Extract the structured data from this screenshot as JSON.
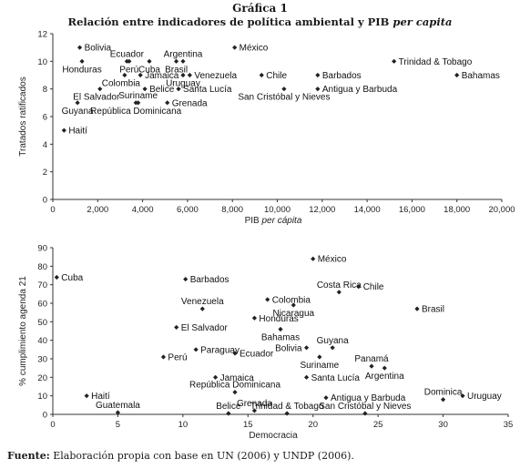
{
  "figure": {
    "title": "Gráfica 1",
    "subtitle_parts": [
      "Relación entre indicadores de política ambiental y ",
      "PIB",
      " ",
      "per capita"
    ],
    "source_label": "Fuente:",
    "source_parts": [
      " Elaboración propia con base en ",
      "UN",
      " (2006) y ",
      "UNDP",
      " (2006)."
    ]
  },
  "chart_data": [
    {
      "type": "scatter",
      "xlabel_parts": [
        "PIB ",
        "per cápita"
      ],
      "ylabel": "Tratados ratificados",
      "xlim": [
        0,
        20000
      ],
      "ylim": [
        0,
        12
      ],
      "xticks": [
        "0",
        "2,000",
        "4,000",
        "6,000",
        "8,000",
        "10,000",
        "12,000",
        "14,000",
        "16,000",
        "18,000",
        "20,000"
      ],
      "yticks": [
        "0",
        "2",
        "4",
        "6",
        "8",
        "10",
        "12"
      ],
      "points": [
        {
          "label": "Bolivia",
          "x": 1200,
          "y": 11,
          "pos": "right"
        },
        {
          "label": "México",
          "x": 8100,
          "y": 11,
          "pos": "right"
        },
        {
          "label": "Ecuador",
          "x": 3300,
          "y": 10,
          "pos": "above"
        },
        {
          "label": "Argentina",
          "x": 5800,
          "y": 10,
          "pos": "above"
        },
        {
          "label": "Trinidad & Tobago",
          "x": 15200,
          "y": 10,
          "pos": "right"
        },
        {
          "label": "Honduras",
          "x": 1300,
          "y": 10,
          "pos": "below"
        },
        {
          "label": "Perú",
          "x": 3400,
          "y": 10,
          "pos": "below"
        },
        {
          "label": "Cuba",
          "x": 4300,
          "y": 10,
          "pos": "below"
        },
        {
          "label": "Brasil",
          "x": 5500,
          "y": 10,
          "pos": "below"
        },
        {
          "label": "Venezuela",
          "x": 6100,
          "y": 9,
          "pos": "right"
        },
        {
          "label": "Chile",
          "x": 9300,
          "y": 9,
          "pos": "right"
        },
        {
          "label": "Barbados",
          "x": 11800,
          "y": 9,
          "pos": "right"
        },
        {
          "label": "Bahamas",
          "x": 18000,
          "y": 9,
          "pos": "right"
        },
        {
          "label": "Colombia",
          "x": 3200,
          "y": 9,
          "pos": "below-left"
        },
        {
          "label": "Jamaica",
          "x": 3900,
          "y": 9,
          "pos": "right"
        },
        {
          "label": "Uruguay",
          "x": 5800,
          "y": 9,
          "pos": "below"
        },
        {
          "label": "Belice",
          "x": 4100,
          "y": 8,
          "pos": "right"
        },
        {
          "label": "Santa Lucía",
          "x": 5600,
          "y": 8,
          "pos": "right"
        },
        {
          "label": "El Salvador",
          "x": 2100,
          "y": 8,
          "pos": "below-left"
        },
        {
          "label": "Suriname",
          "x": 3800,
          "y": 7,
          "pos": "above"
        },
        {
          "label": "Antigua y Barbuda",
          "x": 11800,
          "y": 8,
          "pos": "right"
        },
        {
          "label": "San Cristóbal y Nieves",
          "x": 10300,
          "y": 8,
          "pos": "below"
        },
        {
          "label": "Grenada",
          "x": 5100,
          "y": 7,
          "pos": "right"
        },
        {
          "label": "Guyana",
          "x": 1100,
          "y": 7,
          "pos": "below"
        },
        {
          "label": "República Dominicana",
          "x": 3700,
          "y": 7,
          "pos": "below"
        },
        {
          "label": "Haití",
          "x": 500,
          "y": 5,
          "pos": "right"
        }
      ]
    },
    {
      "type": "scatter",
      "xlabel": "Democracia",
      "ylabel": "% cumplimiento agenda 21",
      "xlim": [
        0,
        35
      ],
      "ylim": [
        0,
        90
      ],
      "xticks": [
        "0",
        "5",
        "10",
        "15",
        "20",
        "25",
        "30",
        "35"
      ],
      "yticks": [
        "0",
        "10",
        "20",
        "30",
        "40",
        "50",
        "60",
        "70",
        "80",
        "90"
      ],
      "points": [
        {
          "label": "México",
          "x": 20,
          "y": 84,
          "pos": "right"
        },
        {
          "label": "Cuba",
          "x": 0.3,
          "y": 74,
          "pos": "right"
        },
        {
          "label": "Barbados",
          "x": 10.2,
          "y": 73,
          "pos": "right"
        },
        {
          "label": "Costa Rica",
          "x": 22,
          "y": 66,
          "pos": "above"
        },
        {
          "label": "Chile",
          "x": 23.5,
          "y": 69,
          "pos": "right"
        },
        {
          "label": "Venezuela",
          "x": 11.5,
          "y": 57,
          "pos": "above"
        },
        {
          "label": "Colombia",
          "x": 16.5,
          "y": 62,
          "pos": "right"
        },
        {
          "label": "Nicaragua",
          "x": 18.5,
          "y": 59,
          "pos": "below"
        },
        {
          "label": "Brasil",
          "x": 28,
          "y": 57,
          "pos": "right"
        },
        {
          "label": "Honduras",
          "x": 15.5,
          "y": 52,
          "pos": "right"
        },
        {
          "label": "El Salvador",
          "x": 9.5,
          "y": 47,
          "pos": "right"
        },
        {
          "label": "Bahamas",
          "x": 17.5,
          "y": 46,
          "pos": "below"
        },
        {
          "label": "Guyana",
          "x": 21.5,
          "y": 36,
          "pos": "above"
        },
        {
          "label": "Paraguay",
          "x": 11,
          "y": 35,
          "pos": "right"
        },
        {
          "label": "Ecuador",
          "x": 14,
          "y": 33,
          "pos": "right"
        },
        {
          "label": "Bolivia",
          "x": 19.5,
          "y": 36,
          "pos": "left"
        },
        {
          "label": "Perú",
          "x": 8.5,
          "y": 31,
          "pos": "right"
        },
        {
          "label": "Suriname",
          "x": 20.5,
          "y": 31,
          "pos": "below"
        },
        {
          "label": "Panamá",
          "x": 24.5,
          "y": 26,
          "pos": "above"
        },
        {
          "label": "Argentina",
          "x": 25.5,
          "y": 25,
          "pos": "below"
        },
        {
          "label": "Jamaica",
          "x": 12.5,
          "y": 20,
          "pos": "right"
        },
        {
          "label": "Santa Lucía",
          "x": 19.5,
          "y": 20,
          "pos": "right"
        },
        {
          "label": "Haití",
          "x": 2.6,
          "y": 10,
          "pos": "right"
        },
        {
          "label": "República Dominicana",
          "x": 14,
          "y": 12,
          "pos": "above"
        },
        {
          "label": "Antigua y Barbuda",
          "x": 21,
          "y": 9,
          "pos": "right"
        },
        {
          "label": "Dominica",
          "x": 30,
          "y": 8,
          "pos": "above"
        },
        {
          "label": "Uruguay",
          "x": 31.5,
          "y": 10,
          "pos": "right"
        },
        {
          "label": "Guatemala",
          "x": 5,
          "y": 1,
          "pos": "above"
        },
        {
          "label": "Belice",
          "x": 13.5,
          "y": 0.5,
          "pos": "above"
        },
        {
          "label": "Grenada",
          "x": 15.5,
          "y": 2,
          "pos": "above"
        },
        {
          "label": "Trinidad & Tobago",
          "x": 18,
          "y": 0.5,
          "pos": "above"
        },
        {
          "label": "San Cristóbal y Nieves",
          "x": 24,
          "y": 0.5,
          "pos": "above"
        }
      ]
    }
  ]
}
